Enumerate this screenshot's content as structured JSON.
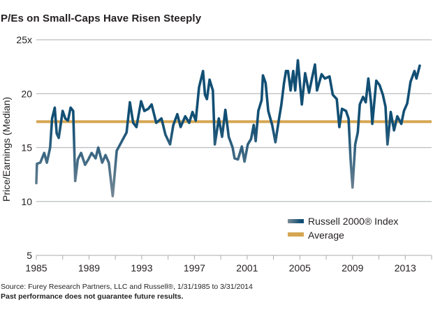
{
  "chart_data": {
    "type": "line",
    "title": "P/Es on Small-Caps Have Risen Steeply",
    "xlabel": "",
    "ylabel": "Price/Earnings (Median)",
    "xlim": [
      1985,
      2015
    ],
    "ylim": [
      5,
      25
    ],
    "x_ticks": [
      1985,
      1987,
      1989,
      1991,
      1993,
      1995,
      1997,
      1999,
      2001,
      2003,
      2005,
      2007,
      2009,
      2011,
      2013,
      2015
    ],
    "x_tick_labels": [
      {
        "year": 1985,
        "label": "1985"
      },
      {
        "year": 1989,
        "label": "1989"
      },
      {
        "year": 1993,
        "label": "1993"
      },
      {
        "year": 1997,
        "label": "1997"
      },
      {
        "year": 2001,
        "label": "2001"
      },
      {
        "year": 2005,
        "label": "2005"
      },
      {
        "year": 2009,
        "label": "2009"
      },
      {
        "year": 2013,
        "label": "2013"
      }
    ],
    "y_ticks": [
      {
        "value": 25,
        "label": "25x"
      },
      {
        "value": 20,
        "label": "20"
      },
      {
        "value": 15,
        "label": "15"
      },
      {
        "value": 10,
        "label": "10"
      },
      {
        "value": 5,
        "label": "5"
      }
    ],
    "grid": "horizontal",
    "legend_position": "bottom-right",
    "series": [
      {
        "name": "Russell 2000® Index",
        "color_low": "#7b8b97",
        "color_high": "#124f74",
        "x": [
          1985.0,
          1985.05,
          1985.3,
          1985.6,
          1985.8,
          1986.05,
          1986.2,
          1986.4,
          1986.55,
          1986.7,
          1987.0,
          1987.2,
          1987.4,
          1987.6,
          1987.8,
          1987.95,
          1988.15,
          1988.4,
          1988.7,
          1988.95,
          1989.2,
          1989.5,
          1989.7,
          1990.0,
          1990.25,
          1990.5,
          1990.8,
          1991.1,
          1991.5,
          1991.85,
          1992.1,
          1992.35,
          1992.6,
          1992.95,
          1993.2,
          1993.5,
          1993.75,
          1994.1,
          1994.5,
          1994.8,
          1995.15,
          1995.4,
          1995.7,
          1995.95,
          1996.3,
          1996.6,
          1996.85,
          1997.1,
          1997.35,
          1997.65,
          1997.8,
          1997.95,
          1998.15,
          1998.4,
          1998.55,
          1998.85,
          1999.1,
          1999.35,
          1999.6,
          1999.9,
          2000.05,
          2000.3,
          2000.6,
          2000.8,
          2001.05,
          2001.3,
          2001.5,
          2001.65,
          2001.85,
          2002.1,
          2002.2,
          2002.4,
          2002.6,
          2002.9,
          2003.15,
          2003.4,
          2003.6,
          2003.8,
          2003.95,
          2004.1,
          2004.3,
          2004.5,
          2004.65,
          2004.85,
          2005.15,
          2005.4,
          2005.7,
          2005.95,
          2006.15,
          2006.3,
          2006.65,
          2006.9,
          2007.25,
          2007.5,
          2007.8,
          2008.0,
          2008.2,
          2008.5,
          2008.7,
          2008.85,
          2009.0,
          2009.2,
          2009.4,
          2009.55,
          2009.8,
          2010.0,
          2010.2,
          2010.4,
          2010.5,
          2010.8,
          2011.05,
          2011.3,
          2011.5,
          2011.65,
          2011.9,
          2012.15,
          2012.4,
          2012.7,
          2012.9,
          2013.15,
          2013.4,
          2013.7,
          2013.85,
          2014.1
        ],
        "y": [
          11.7,
          13.5,
          13.6,
          14.5,
          13.6,
          15.0,
          17.7,
          18.7,
          16.3,
          15.9,
          18.4,
          17.7,
          17.5,
          18.7,
          18.4,
          11.9,
          13.9,
          14.5,
          13.4,
          13.9,
          14.5,
          14.0,
          15.0,
          13.6,
          14.3,
          13.6,
          10.5,
          14.7,
          15.6,
          16.4,
          19.2,
          17.3,
          16.9,
          19.3,
          18.4,
          18.6,
          19.0,
          17.3,
          17.7,
          16.2,
          15.3,
          17.1,
          18.1,
          16.9,
          17.9,
          17.3,
          18.3,
          17.5,
          20.6,
          22.1,
          19.9,
          19.5,
          21.3,
          20.3,
          15.3,
          17.7,
          16.0,
          18.5,
          16.0,
          15.0,
          14.0,
          13.9,
          15.1,
          13.7,
          15.3,
          15.8,
          17.1,
          15.6,
          18.4,
          19.4,
          21.7,
          21.0,
          18.4,
          17.1,
          15.5,
          17.5,
          19.0,
          21.0,
          22.1,
          22.1,
          20.3,
          22.1,
          20.3,
          23.1,
          19.0,
          21.9,
          20.1,
          21.6,
          22.7,
          20.3,
          21.8,
          21.4,
          21.6,
          19.9,
          19.5,
          16.9,
          18.6,
          18.4,
          17.7,
          13.9,
          11.3,
          15.3,
          16.4,
          19.0,
          19.7,
          19.2,
          21.4,
          19.2,
          17.2,
          21.2,
          20.8,
          19.9,
          18.8,
          15.3,
          18.3,
          16.6,
          17.9,
          17.2,
          18.4,
          19.1,
          21.1,
          22.1,
          21.4,
          22.6
        ]
      },
      {
        "name": "Average",
        "color": "#d5a652",
        "value": 17.4
      }
    ]
  },
  "footer": {
    "source": "Source: Furey Research Partners, LLC and Russell®, 1/31/1985 to 3/31/2014",
    "disclaimer": "Past performance does not guarantee future results."
  }
}
